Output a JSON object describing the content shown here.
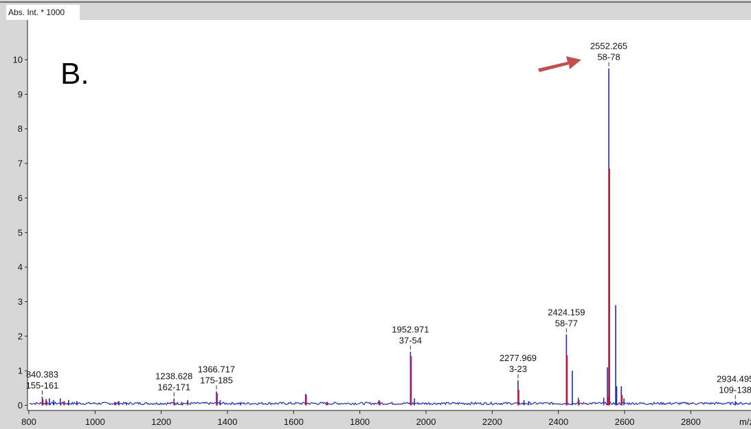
{
  "panel_label": "B.",
  "arrow_color": "#c0504d",
  "chart_data": {
    "type": "line",
    "title": "",
    "ylabel": "Abs. Int. * 1000",
    "xlabel": "m/z",
    "xlim": [
      800,
      2990
    ],
    "ylim": [
      -0.2,
      11.1
    ],
    "x_ticks": [
      800,
      1000,
      1200,
      1400,
      1600,
      1800,
      2000,
      2200,
      2400,
      2600,
      2800
    ],
    "y_ticks": [
      0,
      1,
      2,
      3,
      4,
      5,
      6,
      7,
      8,
      9,
      10
    ],
    "grid": false,
    "colors": {
      "profile": "#1f2bb0",
      "centroid": "#c0163f",
      "arrow": "#c0504d"
    },
    "series": [
      {
        "role": "profile",
        "peaks": [
          {
            "x": 840.383,
            "y": 0.25
          },
          {
            "x": 852,
            "y": 0.18
          },
          {
            "x": 862,
            "y": 0.2
          },
          {
            "x": 875,
            "y": 0.15
          },
          {
            "x": 895,
            "y": 0.2
          },
          {
            "x": 920,
            "y": 0.15
          },
          {
            "x": 945,
            "y": 0.12
          },
          {
            "x": 1060,
            "y": 0.1
          },
          {
            "x": 1072,
            "y": 0.12
          },
          {
            "x": 1095,
            "y": 0.08
          },
          {
            "x": 1238.628,
            "y": 0.2
          },
          {
            "x": 1262,
            "y": 0.1
          },
          {
            "x": 1280,
            "y": 0.15
          },
          {
            "x": 1366.717,
            "y": 0.4
          },
          {
            "x": 1378,
            "y": 0.15
          },
          {
            "x": 1440,
            "y": 0.08
          },
          {
            "x": 1636,
            "y": 0.33
          },
          {
            "x": 1700,
            "y": 0.1
          },
          {
            "x": 1858,
            "y": 0.15
          },
          {
            "x": 1952.971,
            "y": 1.55
          },
          {
            "x": 1965,
            "y": 0.2
          },
          {
            "x": 2277.969,
            "y": 0.72
          },
          {
            "x": 2296,
            "y": 0.15
          },
          {
            "x": 2310,
            "y": 0.12
          },
          {
            "x": 2424.159,
            "y": 2.05
          },
          {
            "x": 2442,
            "y": 1.0
          },
          {
            "x": 2460,
            "y": 0.22
          },
          {
            "x": 2537,
            "y": 0.22
          },
          {
            "x": 2548,
            "y": 1.1
          },
          {
            "x": 2552.265,
            "y": 9.75
          },
          {
            "x": 2573,
            "y": 2.9
          },
          {
            "x": 2576,
            "y": 0.55
          },
          {
            "x": 2590,
            "y": 0.55
          },
          {
            "x": 2598,
            "y": 0.2
          },
          {
            "x": 2934.495,
            "y": 0.12
          }
        ]
      },
      {
        "role": "centroid",
        "peaks": [
          {
            "x": 840.383,
            "y": 0.18
          },
          {
            "x": 852,
            "y": 0.12
          },
          {
            "x": 905,
            "y": 0.12
          },
          {
            "x": 1060,
            "y": 0.08
          },
          {
            "x": 1238.628,
            "y": 0.08
          },
          {
            "x": 1262,
            "y": 0.05
          },
          {
            "x": 1366.717,
            "y": 0.35
          },
          {
            "x": 1636,
            "y": 0.3
          },
          {
            "x": 1700,
            "y": 0.08
          },
          {
            "x": 1858,
            "y": 0.12
          },
          {
            "x": 1952.971,
            "y": 1.42
          },
          {
            "x": 2277.969,
            "y": 0.45
          },
          {
            "x": 2424.159,
            "y": 1.45
          },
          {
            "x": 2460,
            "y": 0.15
          },
          {
            "x": 2548,
            "y": 0.25
          },
          {
            "x": 2552.265,
            "y": 6.85
          },
          {
            "x": 2590,
            "y": 0.3
          }
        ]
      }
    ],
    "annotations": [
      {
        "x": 840.383,
        "y": 0.25,
        "lines": [
          "840.383",
          "155-161"
        ]
      },
      {
        "x": 1238.628,
        "y": 0.2,
        "lines": [
          "1238.628",
          "162-171"
        ]
      },
      {
        "x": 1366.717,
        "y": 0.4,
        "lines": [
          "1366.717",
          "175-185"
        ]
      },
      {
        "x": 1952.971,
        "y": 1.55,
        "lines": [
          "1952.971",
          "37-54"
        ]
      },
      {
        "x": 2277.969,
        "y": 0.72,
        "lines": [
          "2277.969",
          "3-23"
        ]
      },
      {
        "x": 2424.159,
        "y": 2.05,
        "lines": [
          "2424.159",
          "58-77"
        ]
      },
      {
        "x": 2552.265,
        "y": 9.75,
        "lines": [
          "2552.265",
          "58-78"
        ],
        "highlight_arrow": true
      },
      {
        "x": 2934.495,
        "y": 0.12,
        "lines": [
          "2934.495",
          "109-138"
        ]
      }
    ]
  }
}
